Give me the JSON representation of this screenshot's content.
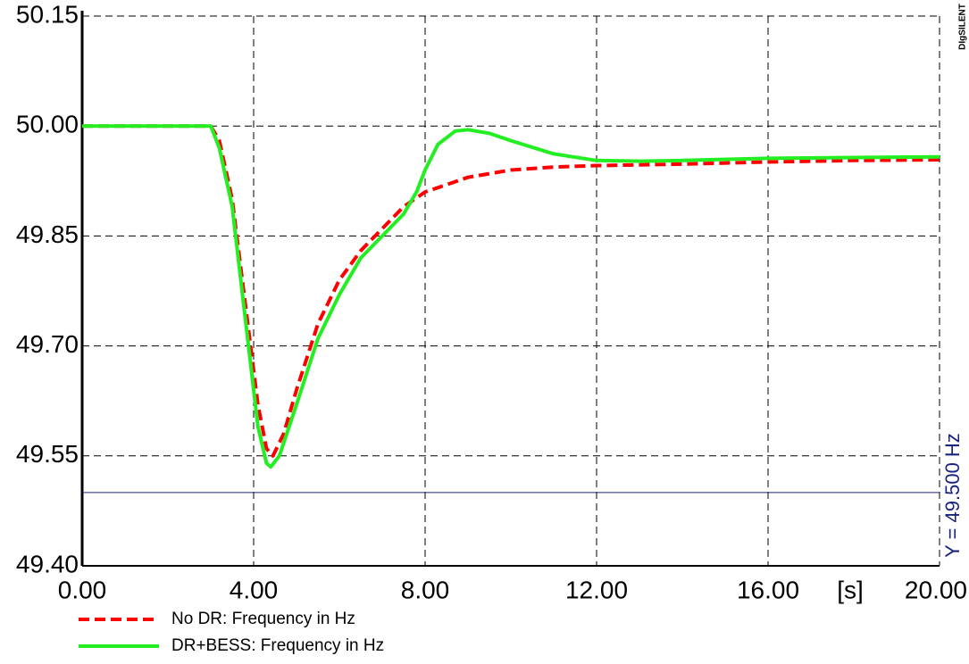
{
  "chart_data": {
    "type": "line",
    "x_unit_label": "[s]",
    "logo": "DIgSILENT",
    "xlim": [
      0,
      20
    ],
    "xticks": [
      {
        "value": 0,
        "label": "0.00"
      },
      {
        "value": 4,
        "label": "4.00"
      },
      {
        "value": 8,
        "label": "8.00"
      },
      {
        "value": 12,
        "label": "12.00"
      },
      {
        "value": 16,
        "label": "16.00"
      },
      {
        "value": 20,
        "label": "20.00"
      }
    ],
    "ylim": [
      49.4,
      50.15
    ],
    "yticks": [
      {
        "value": 49.4,
        "label": "49.40"
      },
      {
        "value": 49.55,
        "label": "49.55"
      },
      {
        "value": 49.7,
        "label": "49.70"
      },
      {
        "value": 49.85,
        "label": "49.85"
      },
      {
        "value": 50,
        "label": "50.00"
      },
      {
        "value": 50.15,
        "label": "50.15"
      }
    ],
    "grid": true,
    "reference_line": {
      "value": 49.5,
      "label": "Y = 49.500 Hz",
      "color": "#1a237e"
    },
    "series": [
      {
        "name": "No DR: Frequency in Hz",
        "color": "#ff0000",
        "dashed": true,
        "x": [
          0,
          3.0,
          3.2,
          3.5,
          3.8,
          4.1,
          4.3,
          4.45,
          4.7,
          5.0,
          5.5,
          6.0,
          6.5,
          7.0,
          7.5,
          8.0,
          8.5,
          9.0,
          10,
          11,
          12,
          14,
          16,
          18,
          20
        ],
        "values": [
          50.0,
          50.0,
          49.98,
          49.9,
          49.76,
          49.62,
          49.56,
          49.55,
          49.58,
          49.64,
          49.73,
          49.79,
          49.83,
          49.86,
          49.89,
          49.91,
          49.92,
          49.93,
          49.94,
          49.944,
          49.946,
          49.948,
          49.951,
          49.953,
          49.954
        ]
      },
      {
        "name": "DR+BESS: Frequency in Hz",
        "color": "#22ee22",
        "dashed": false,
        "x": [
          0,
          3.0,
          3.2,
          3.5,
          3.8,
          4.1,
          4.3,
          4.4,
          4.6,
          5.0,
          5.5,
          6.0,
          6.5,
          7.0,
          7.5,
          7.8,
          8.0,
          8.3,
          8.7,
          9.0,
          9.5,
          10,
          11,
          12,
          13,
          14,
          16,
          18,
          20
        ],
        "values": [
          50.0,
          50.0,
          49.97,
          49.89,
          49.74,
          49.59,
          49.54,
          49.535,
          49.55,
          49.62,
          49.71,
          49.77,
          49.82,
          49.85,
          49.88,
          49.91,
          49.94,
          49.975,
          49.993,
          49.995,
          49.99,
          49.98,
          49.962,
          49.953,
          49.952,
          49.953,
          49.956,
          49.957,
          49.958
        ]
      }
    ]
  }
}
